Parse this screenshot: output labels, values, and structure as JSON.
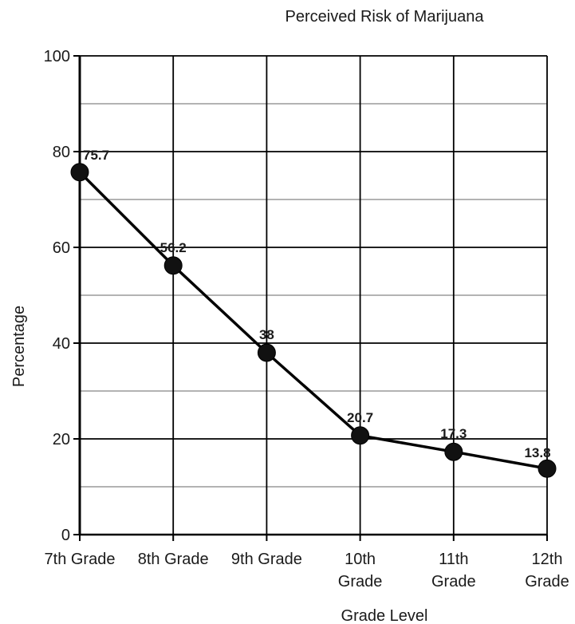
{
  "chart_data": {
    "type": "line",
    "title": "Perceived Risk of Marijuana",
    "xlabel": "Grade Level",
    "ylabel": "Percentage",
    "categories": [
      [
        "7th Grade"
      ],
      [
        "8th Grade"
      ],
      [
        "9th Grade"
      ],
      [
        "10th",
        "Grade"
      ],
      [
        "11th",
        "Grade"
      ],
      [
        "12th",
        "Grade"
      ]
    ],
    "series": [
      {
        "values": [
          75.7,
          56.2,
          38,
          20.7,
          17.3,
          13.8
        ],
        "labels": [
          "75.7",
          "56.2",
          "38",
          "20.7",
          "17.3",
          "13.8"
        ]
      }
    ],
    "ylim": [
      0,
      100
    ],
    "yticks": [
      "0",
      "20",
      "40",
      "60",
      "80",
      "100"
    ],
    "grid": true,
    "legend": "none",
    "colors": {
      "line": "#000000",
      "marker": "#111111",
      "grid_major": "#000000",
      "grid_minor": "#9a9a9a"
    }
  }
}
